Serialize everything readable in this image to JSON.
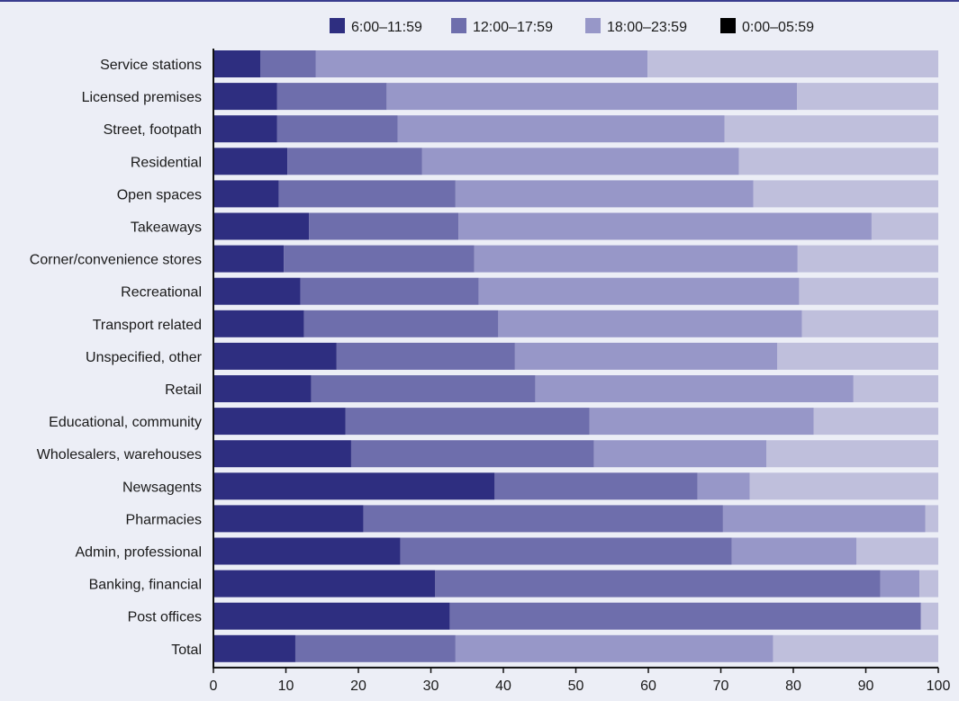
{
  "chart_data": {
    "type": "bar",
    "orientation": "horizontal",
    "stacked": true,
    "title": "",
    "xlabel": "",
    "ylabel": "",
    "xlim": [
      0,
      100
    ],
    "xticks": [
      0,
      10,
      20,
      30,
      40,
      50,
      60,
      70,
      80,
      90,
      100
    ],
    "grid": false,
    "legend_position": "top",
    "categories": [
      "Service stations",
      "Licensed premises",
      "Street, footpath",
      "Residential",
      "Open spaces",
      "Takeaways",
      "Corner/convenience stores",
      "Recreational",
      "Transport related",
      "Unspecified, other",
      "Retail",
      "Educational, community",
      "Wholesalers, warehouses",
      "Newsagents",
      "Pharmacies",
      "Admin, professional",
      "Banking, financial",
      "Post offices",
      "Total"
    ],
    "series": [
      {
        "name": "6:00–11:59",
        "color": "#2e2e80",
        "values": [
          6.5,
          8.8,
          8.8,
          10.2,
          9.0,
          13.2,
          9.7,
          12.0,
          12.5,
          17.0,
          13.5,
          18.2,
          19.0,
          38.8,
          20.7,
          25.8,
          30.6,
          32.6,
          11.3
        ]
      },
      {
        "name": "12:00–17:59",
        "color": "#6e6eac",
        "values": [
          7.6,
          15.1,
          16.6,
          18.6,
          24.4,
          20.6,
          26.3,
          24.6,
          26.8,
          24.6,
          30.9,
          33.7,
          33.5,
          28.0,
          49.6,
          45.7,
          61.4,
          65.0,
          22.1
        ]
      },
      {
        "name": "18:00–23:59",
        "color": "#9797c8",
        "values": [
          45.8,
          56.6,
          45.1,
          43.7,
          41.1,
          57.0,
          44.6,
          44.2,
          41.9,
          36.2,
          43.9,
          30.9,
          23.8,
          7.2,
          27.9,
          17.2,
          5.4,
          0.0,
          43.8
        ]
      },
      {
        "name": "0:00–05:59",
        "color": "#000000",
        "bar_color": "#bfbfdc",
        "values": [
          40.1,
          19.5,
          29.5,
          27.5,
          25.5,
          9.2,
          19.4,
          19.2,
          18.8,
          22.2,
          11.7,
          17.2,
          23.7,
          26.0,
          1.8,
          11.3,
          2.6,
          2.4,
          22.8
        ]
      }
    ]
  }
}
